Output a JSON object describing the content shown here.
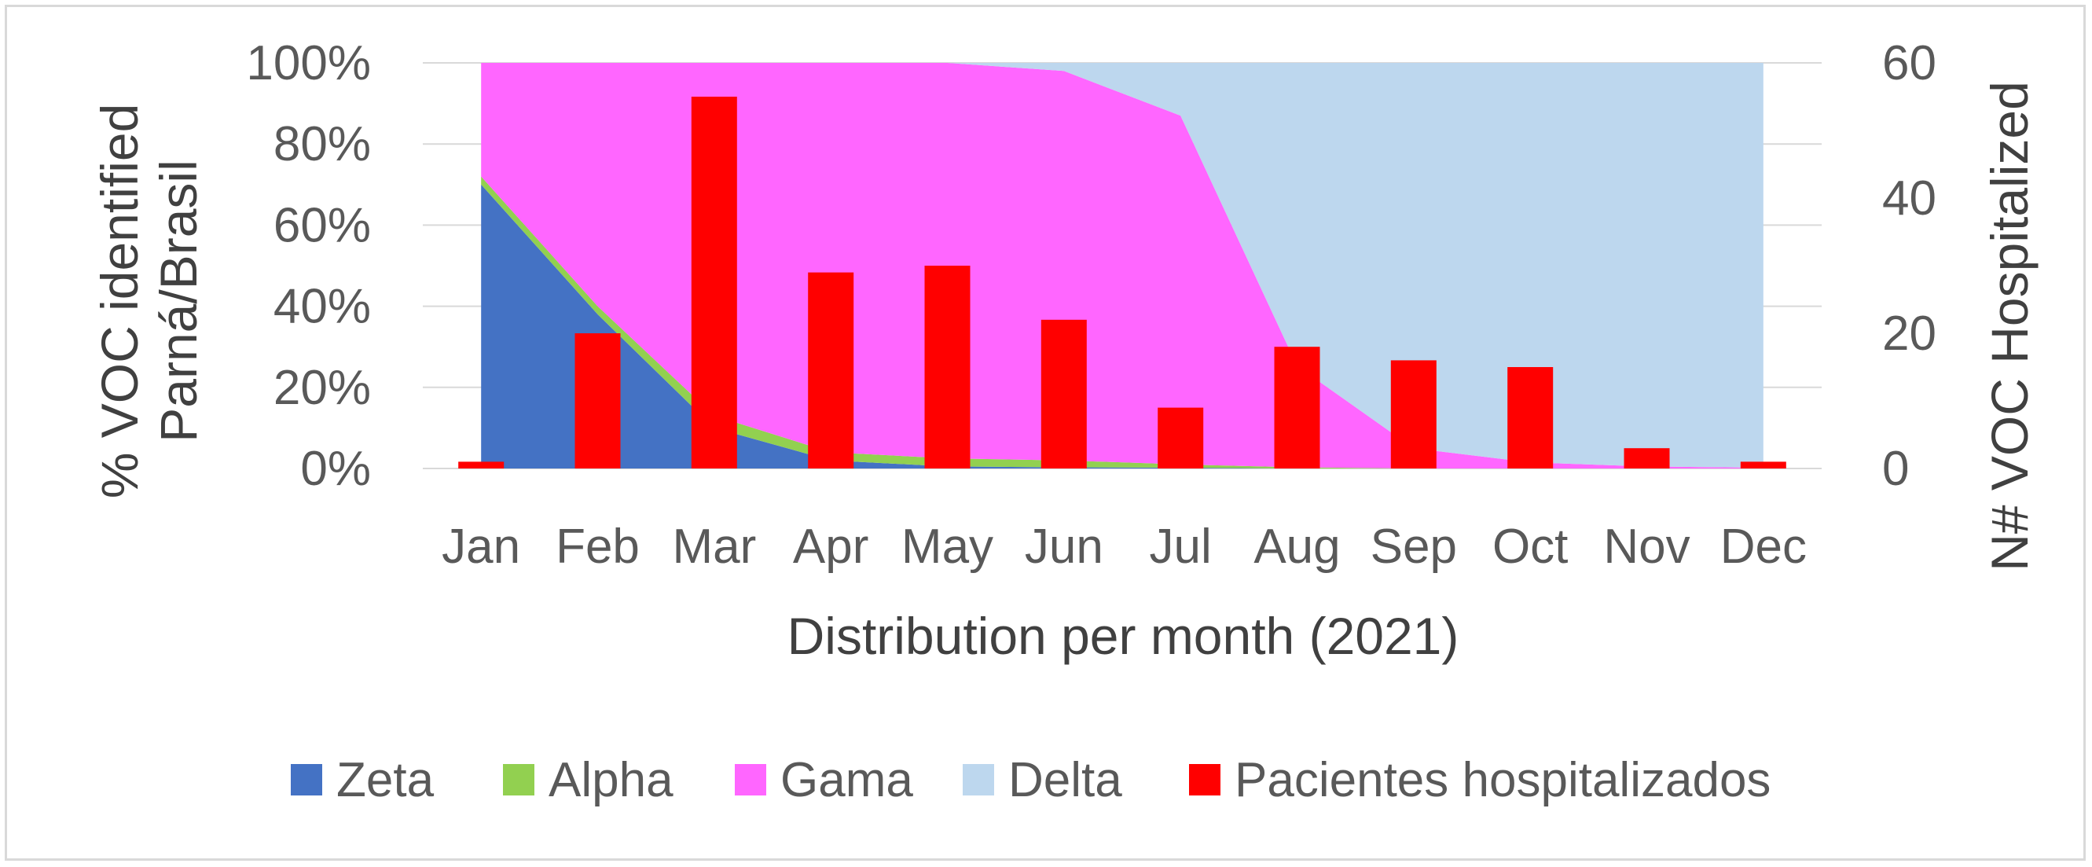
{
  "chart_data": {
    "type": "area",
    "x_label": "Distribution per month (2021)",
    "y_left_label_line1": "% VOC identified",
    "y_left_label_line2": "Parná/Brasil",
    "y_right_label": "N# VOC Hospitalized",
    "categories": [
      "Jan",
      "Feb",
      "Mar",
      "Apr",
      "May",
      "Jun",
      "Jul",
      "Aug",
      "Sep",
      "Oct",
      "Nov",
      "Dec"
    ],
    "y_left_ticks": [
      "0%",
      "20%",
      "40%",
      "60%",
      "80%",
      "100%"
    ],
    "y_left_range": [
      0,
      100
    ],
    "y_right_ticks": [
      "0",
      "20",
      "40",
      "60"
    ],
    "y_right_range": [
      0,
      60
    ],
    "grid": true,
    "legend_position": "bottom",
    "area_series": [
      {
        "name": "Zeta",
        "color": "#4472c4",
        "values": [
          70,
          38,
          10,
          2,
          0.5,
          0.3,
          0.2,
          0,
          0,
          0,
          0,
          0
        ]
      },
      {
        "name": "Alpha",
        "color": "#92d050",
        "values": [
          2,
          2,
          3,
          2,
          2,
          1.7,
          0.8,
          0.3,
          0,
          0,
          0,
          0
        ]
      },
      {
        "name": "Gama",
        "color": "#ff66ff",
        "values": [
          28,
          60,
          87,
          96,
          97.5,
          96,
          86,
          25,
          5,
          1.5,
          0.5,
          0.2
        ]
      },
      {
        "name": "Delta",
        "color": "#bdd7ee",
        "values": [
          0,
          0,
          0,
          0,
          0,
          2,
          13,
          74.7,
          95,
          98.5,
          99.5,
          99.8
        ]
      }
    ],
    "bar_series": {
      "name": "Pacientes hospitalizados",
      "color": "#ff0000",
      "values": [
        1,
        20,
        55,
        29,
        30,
        22,
        9,
        18,
        16,
        15,
        3,
        1
      ]
    }
  }
}
